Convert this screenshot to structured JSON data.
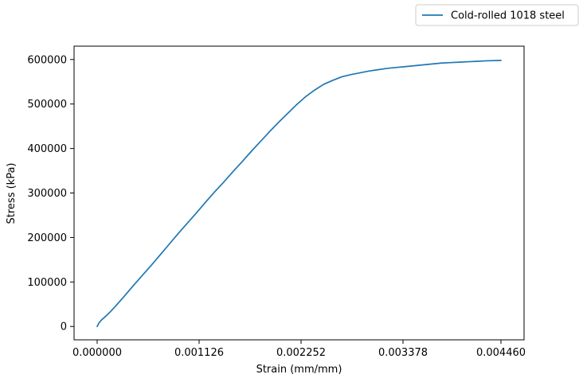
{
  "chart_data": {
    "type": "line",
    "xlabel": "Strain (mm/mm)",
    "ylabel": "Stress (kPa)",
    "xlim": [
      -0.000255,
      0.004715
    ],
    "ylim": [
      -30000,
      630000
    ],
    "x_ticks": [
      {
        "value": 0.0,
        "label": "0.000000"
      },
      {
        "value": 0.001126,
        "label": "0.001126"
      },
      {
        "value": 0.002252,
        "label": "0.002252"
      },
      {
        "value": 0.003378,
        "label": "0.003378"
      },
      {
        "value": 0.00446,
        "label": "0.004460"
      }
    ],
    "y_ticks": [
      {
        "value": 0,
        "label": "0"
      },
      {
        "value": 100000,
        "label": "100000"
      },
      {
        "value": 200000,
        "label": "200000"
      },
      {
        "value": 300000,
        "label": "300000"
      },
      {
        "value": 400000,
        "label": "400000"
      },
      {
        "value": 500000,
        "label": "500000"
      },
      {
        "value": 600000,
        "label": "600000"
      }
    ],
    "legend_position": "top-right outside",
    "grid": false,
    "series": [
      {
        "name": "Cold-rolled 1018 steel",
        "color": "#1f77b4",
        "x": [
          0.0,
          2e-05,
          5e-05,
          0.0001,
          0.00015,
          0.0002,
          0.0003,
          0.0004,
          0.0005,
          0.0006,
          0.0007,
          0.0008,
          0.0009,
          0.001,
          0.0011,
          0.0012,
          0.0013,
          0.0014,
          0.0015,
          0.0016,
          0.0017,
          0.0018,
          0.0019,
          0.002,
          0.0021,
          0.0022,
          0.0023,
          0.0024,
          0.0025,
          0.0026,
          0.0027,
          0.0028,
          0.0029,
          0.003,
          0.0031,
          0.0032,
          0.0033,
          0.0034,
          0.0035,
          0.0036,
          0.0037,
          0.0038,
          0.0039,
          0.004,
          0.0041,
          0.0042,
          0.0043,
          0.00446
        ],
        "y": [
          0,
          8000,
          15000,
          24000,
          34000,
          45000,
          68000,
          92000,
          115000,
          138000,
          162000,
          186000,
          210000,
          233000,
          256000,
          280000,
          303000,
          325000,
          348000,
          370000,
          393000,
          415000,
          437000,
          458000,
          478000,
          498000,
          516000,
          531000,
          544000,
          553000,
          561000,
          566000,
          570000,
          574000,
          577000,
          580000,
          582000,
          584000,
          586000,
          588000,
          590000,
          592000,
          593000,
          594000,
          595000,
          596000,
          597000,
          598000
        ]
      }
    ]
  }
}
